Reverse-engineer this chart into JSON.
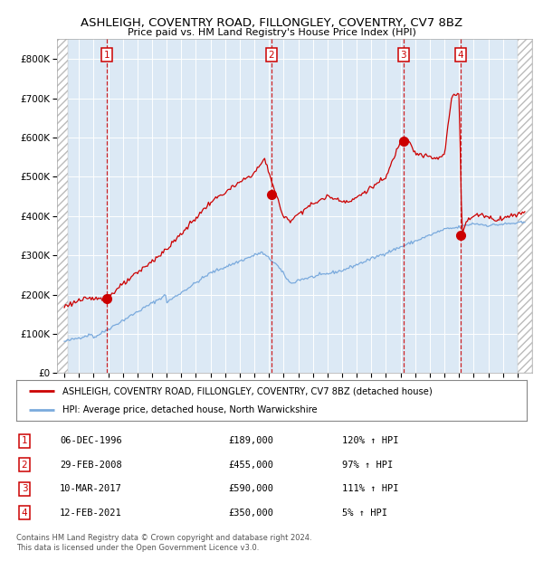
{
  "title": "ASHLEIGH, COVENTRY ROAD, FILLONGLEY, COVENTRY, CV7 8BZ",
  "subtitle": "Price paid vs. HM Land Registry's House Price Index (HPI)",
  "legend_line1": "ASHLEIGH, COVENTRY ROAD, FILLONGLEY, COVENTRY, CV7 8BZ (detached house)",
  "legend_line2": "HPI: Average price, detached house, North Warwickshire",
  "footer1": "Contains HM Land Registry data © Crown copyright and database right 2024.",
  "footer2": "This data is licensed under the Open Government Licence v3.0.",
  "transactions": [
    {
      "num": 1,
      "date": "06-DEC-1996",
      "price": "£189,000",
      "pct": "120% ↑ HPI",
      "x_year": 1996.93,
      "y_val": 189000
    },
    {
      "num": 2,
      "date": "29-FEB-2008",
      "price": "£455,000",
      "pct": "97% ↑ HPI",
      "x_year": 2008.16,
      "y_val": 455000
    },
    {
      "num": 3,
      "date": "10-MAR-2017",
      "price": "£590,000",
      "pct": "111% ↑ HPI",
      "x_year": 2017.19,
      "y_val": 590000
    },
    {
      "num": 4,
      "date": "12-FEB-2021",
      "price": "£350,000",
      "pct": "5% ↑ HPI",
      "x_year": 2021.12,
      "y_val": 350000
    }
  ],
  "hpi_color": "#7aaadd",
  "price_color": "#cc0000",
  "background_color": "#dce9f5",
  "grid_color": "#ffffff",
  "dashed_line_color": "#cc0000",
  "ylim": [
    0,
    850000
  ],
  "xlim_start": 1993.5,
  "xlim_end": 2026.0,
  "hatch_end": 1994.25,
  "hatch_start_right": 2025.0
}
